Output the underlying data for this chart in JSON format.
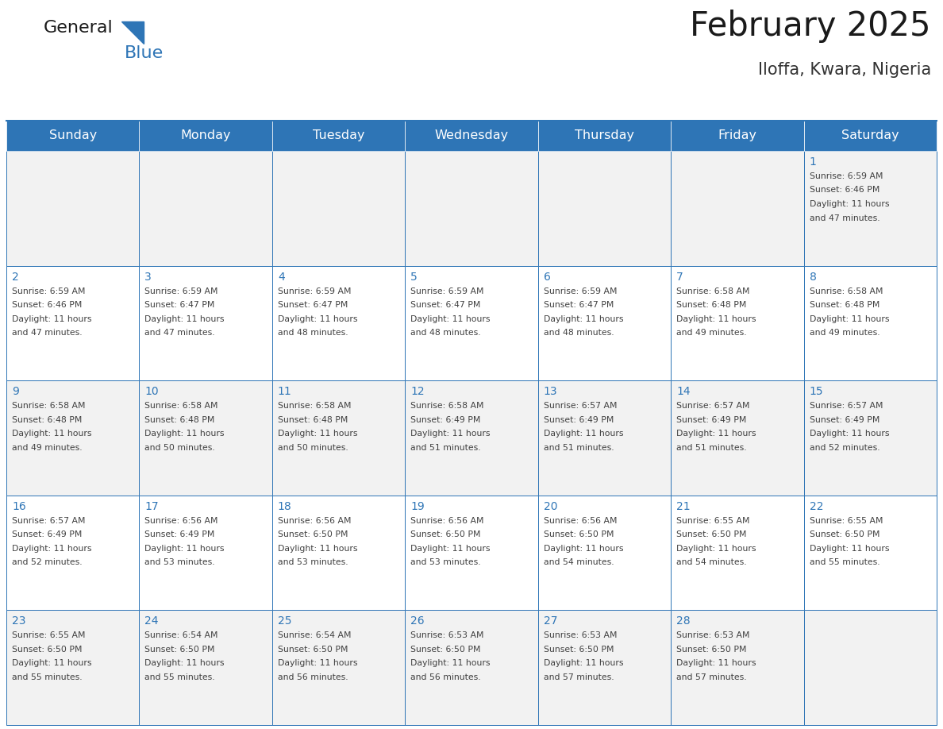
{
  "title": "February 2025",
  "subtitle": "Iloffa, Kwara, Nigeria",
  "days_of_week": [
    "Sunday",
    "Monday",
    "Tuesday",
    "Wednesday",
    "Thursday",
    "Friday",
    "Saturday"
  ],
  "header_bg": "#2E75B6",
  "header_text_color": "#FFFFFF",
  "cell_bg_even": "#F2F2F2",
  "cell_bg_odd": "#FFFFFF",
  "cell_border_color": "#2E75B6",
  "day_number_color": "#2E75B6",
  "text_color": "#404040",
  "calendar_data": [
    [
      null,
      null,
      null,
      null,
      null,
      null,
      {
        "day": 1,
        "sunrise": "6:59 AM",
        "sunset": "6:46 PM",
        "daylight_line1": "Daylight: 11 hours",
        "daylight_line2": "and 47 minutes."
      }
    ],
    [
      {
        "day": 2,
        "sunrise": "6:59 AM",
        "sunset": "6:46 PM",
        "daylight_line1": "Daylight: 11 hours",
        "daylight_line2": "and 47 minutes."
      },
      {
        "day": 3,
        "sunrise": "6:59 AM",
        "sunset": "6:47 PM",
        "daylight_line1": "Daylight: 11 hours",
        "daylight_line2": "and 47 minutes."
      },
      {
        "day": 4,
        "sunrise": "6:59 AM",
        "sunset": "6:47 PM",
        "daylight_line1": "Daylight: 11 hours",
        "daylight_line2": "and 48 minutes."
      },
      {
        "day": 5,
        "sunrise": "6:59 AM",
        "sunset": "6:47 PM",
        "daylight_line1": "Daylight: 11 hours",
        "daylight_line2": "and 48 minutes."
      },
      {
        "day": 6,
        "sunrise": "6:59 AM",
        "sunset": "6:47 PM",
        "daylight_line1": "Daylight: 11 hours",
        "daylight_line2": "and 48 minutes."
      },
      {
        "day": 7,
        "sunrise": "6:58 AM",
        "sunset": "6:48 PM",
        "daylight_line1": "Daylight: 11 hours",
        "daylight_line2": "and 49 minutes."
      },
      {
        "day": 8,
        "sunrise": "6:58 AM",
        "sunset": "6:48 PM",
        "daylight_line1": "Daylight: 11 hours",
        "daylight_line2": "and 49 minutes."
      }
    ],
    [
      {
        "day": 9,
        "sunrise": "6:58 AM",
        "sunset": "6:48 PM",
        "daylight_line1": "Daylight: 11 hours",
        "daylight_line2": "and 49 minutes."
      },
      {
        "day": 10,
        "sunrise": "6:58 AM",
        "sunset": "6:48 PM",
        "daylight_line1": "Daylight: 11 hours",
        "daylight_line2": "and 50 minutes."
      },
      {
        "day": 11,
        "sunrise": "6:58 AM",
        "sunset": "6:48 PM",
        "daylight_line1": "Daylight: 11 hours",
        "daylight_line2": "and 50 minutes."
      },
      {
        "day": 12,
        "sunrise": "6:58 AM",
        "sunset": "6:49 PM",
        "daylight_line1": "Daylight: 11 hours",
        "daylight_line2": "and 51 minutes."
      },
      {
        "day": 13,
        "sunrise": "6:57 AM",
        "sunset": "6:49 PM",
        "daylight_line1": "Daylight: 11 hours",
        "daylight_line2": "and 51 minutes."
      },
      {
        "day": 14,
        "sunrise": "6:57 AM",
        "sunset": "6:49 PM",
        "daylight_line1": "Daylight: 11 hours",
        "daylight_line2": "and 51 minutes."
      },
      {
        "day": 15,
        "sunrise": "6:57 AM",
        "sunset": "6:49 PM",
        "daylight_line1": "Daylight: 11 hours",
        "daylight_line2": "and 52 minutes."
      }
    ],
    [
      {
        "day": 16,
        "sunrise": "6:57 AM",
        "sunset": "6:49 PM",
        "daylight_line1": "Daylight: 11 hours",
        "daylight_line2": "and 52 minutes."
      },
      {
        "day": 17,
        "sunrise": "6:56 AM",
        "sunset": "6:49 PM",
        "daylight_line1": "Daylight: 11 hours",
        "daylight_line2": "and 53 minutes."
      },
      {
        "day": 18,
        "sunrise": "6:56 AM",
        "sunset": "6:50 PM",
        "daylight_line1": "Daylight: 11 hours",
        "daylight_line2": "and 53 minutes."
      },
      {
        "day": 19,
        "sunrise": "6:56 AM",
        "sunset": "6:50 PM",
        "daylight_line1": "Daylight: 11 hours",
        "daylight_line2": "and 53 minutes."
      },
      {
        "day": 20,
        "sunrise": "6:56 AM",
        "sunset": "6:50 PM",
        "daylight_line1": "Daylight: 11 hours",
        "daylight_line2": "and 54 minutes."
      },
      {
        "day": 21,
        "sunrise": "6:55 AM",
        "sunset": "6:50 PM",
        "daylight_line1": "Daylight: 11 hours",
        "daylight_line2": "and 54 minutes."
      },
      {
        "day": 22,
        "sunrise": "6:55 AM",
        "sunset": "6:50 PM",
        "daylight_line1": "Daylight: 11 hours",
        "daylight_line2": "and 55 minutes."
      }
    ],
    [
      {
        "day": 23,
        "sunrise": "6:55 AM",
        "sunset": "6:50 PM",
        "daylight_line1": "Daylight: 11 hours",
        "daylight_line2": "and 55 minutes."
      },
      {
        "day": 24,
        "sunrise": "6:54 AM",
        "sunset": "6:50 PM",
        "daylight_line1": "Daylight: 11 hours",
        "daylight_line2": "and 55 minutes."
      },
      {
        "day": 25,
        "sunrise": "6:54 AM",
        "sunset": "6:50 PM",
        "daylight_line1": "Daylight: 11 hours",
        "daylight_line2": "and 56 minutes."
      },
      {
        "day": 26,
        "sunrise": "6:53 AM",
        "sunset": "6:50 PM",
        "daylight_line1": "Daylight: 11 hours",
        "daylight_line2": "and 56 minutes."
      },
      {
        "day": 27,
        "sunrise": "6:53 AM",
        "sunset": "6:50 PM",
        "daylight_line1": "Daylight: 11 hours",
        "daylight_line2": "and 57 minutes."
      },
      {
        "day": 28,
        "sunrise": "6:53 AM",
        "sunset": "6:50 PM",
        "daylight_line1": "Daylight: 11 hours",
        "daylight_line2": "and 57 minutes."
      },
      null
    ]
  ],
  "logo_text_general": "General",
  "logo_text_blue": "Blue",
  "logo_triangle_color": "#2E75B6"
}
